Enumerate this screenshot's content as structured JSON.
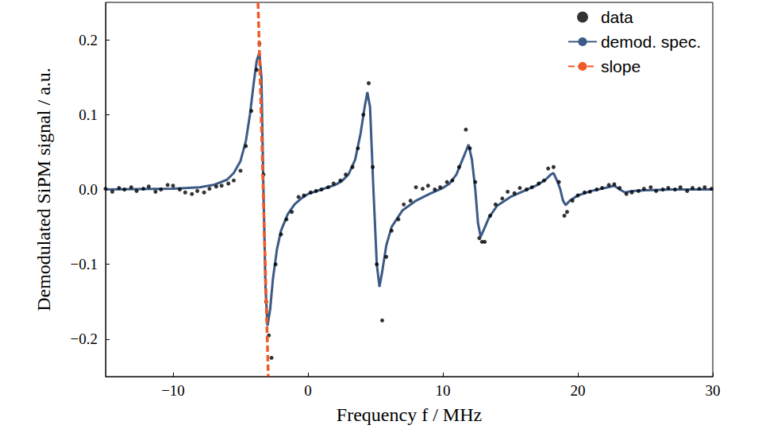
{
  "chart_data": {
    "type": "line",
    "x_label": "Frequency f / MHz",
    "y_label": "Demodulated SiPM signal / a.u.",
    "xlim": [
      -15,
      30
    ],
    "ylim": [
      -0.25,
      0.25
    ],
    "xticks": [
      {
        "value": -10,
        "label": "−10"
      },
      0,
      10,
      20,
      30
    ],
    "yticks": [
      {
        "value": -0.2,
        "label": "−0.2"
      },
      {
        "value": -0.1,
        "label": "−0.1"
      },
      {
        "value": 0,
        "label": "0.0"
      },
      0.1,
      0.2
    ],
    "grid": false,
    "legend": "upper right",
    "series": [
      {
        "name": "data",
        "type": "scatter",
        "color": "#000000",
        "marker": "circle",
        "x": [
          -15.0,
          -14.5,
          -14.0,
          -13.6,
          -13.1,
          -12.7,
          -12.2,
          -11.8,
          -11.3,
          -10.9,
          -10.4,
          -10.0,
          -9.5,
          -9.1,
          -8.6,
          -8.2,
          -7.7,
          -7.3,
          -6.8,
          -6.4,
          -5.9,
          -5.5,
          -5.0,
          -4.6,
          -4.2,
          -3.8,
          -3.6,
          -3.3,
          -3.1,
          -2.9,
          -2.7,
          -2.4,
          -2.0,
          -1.6,
          -1.2,
          -0.7,
          -0.3,
          0.2,
          0.6,
          1.0,
          1.5,
          1.9,
          2.4,
          2.8,
          3.3,
          3.7,
          4.1,
          4.5,
          4.8,
          5.1,
          5.5,
          5.8,
          6.2,
          6.7,
          7.1,
          7.6,
          8.0,
          8.5,
          8.9,
          9.4,
          9.8,
          10.3,
          10.7,
          11.2,
          11.7,
          12.0,
          12.4,
          12.7,
          12.9,
          13.1,
          13.5,
          13.9,
          14.4,
          14.8,
          15.3,
          15.7,
          16.2,
          16.6,
          17.1,
          17.5,
          17.8,
          18.2,
          18.6,
          19.0,
          19.2,
          19.6,
          20.0,
          20.5,
          20.9,
          21.4,
          21.8,
          22.3,
          22.7,
          23.1,
          23.6,
          24.0,
          24.5,
          24.9,
          25.4,
          25.8,
          26.3,
          26.7,
          27.2,
          27.6,
          28.1,
          28.5,
          29.0,
          29.4,
          29.9
        ],
        "values": [
          0.001,
          -0.003,
          0.002,
          0.0,
          0.003,
          -0.002,
          0.001,
          0.004,
          -0.003,
          0.0,
          0.006,
          0.005,
          0.0,
          -0.004,
          -0.006,
          -0.002,
          -0.004,
          0.001,
          0.004,
          0.005,
          0.008,
          0.012,
          0.025,
          0.058,
          0.105,
          0.16,
          0.195,
          0.02,
          -0.15,
          -0.195,
          -0.225,
          -0.1,
          -0.06,
          -0.04,
          -0.03,
          -0.01,
          -0.008,
          -0.004,
          -0.002,
          0.0,
          0.003,
          0.008,
          0.012,
          0.02,
          0.03,
          0.055,
          0.1,
          0.142,
          0.03,
          -0.1,
          -0.175,
          -0.09,
          -0.055,
          -0.04,
          -0.02,
          -0.015,
          0.003,
          0.001,
          0.005,
          0.0,
          0.003,
          0.01,
          0.012,
          0.03,
          0.08,
          0.055,
          0.01,
          -0.065,
          -0.07,
          -0.07,
          -0.035,
          -0.02,
          -0.012,
          -0.003,
          -0.005,
          0.002,
          0.0,
          0.003,
          0.008,
          0.012,
          0.028,
          0.03,
          0.01,
          -0.035,
          -0.03,
          -0.015,
          -0.008,
          -0.004,
          -0.003,
          0.0,
          0.002,
          0.006,
          0.007,
          0.002,
          -0.006,
          -0.004,
          -0.002,
          0.001,
          0.003,
          -0.002,
          0.0,
          0.002,
          0.0,
          0.003,
          -0.002,
          0.002,
          0.001,
          0.003,
          0.001
        ]
      },
      {
        "name": "demod. spec.",
        "type": "line",
        "color": "#3b5a85",
        "line_style": "solid",
        "x": [
          -15,
          -10,
          -8,
          -7,
          -6,
          -5.5,
          -5,
          -4.6,
          -4.3,
          -4.0,
          -3.8,
          -3.6,
          -3.45,
          -3.3,
          -3.15,
          -3.0,
          -2.8,
          -2.6,
          -2.3,
          -2.0,
          -1.5,
          -1.0,
          -0.5,
          0,
          0.5,
          1,
          2,
          2.5,
          3,
          3.5,
          3.9,
          4.2,
          4.4,
          4.6,
          4.85,
          5.1,
          5.3,
          5.5,
          5.8,
          6.2,
          7,
          8,
          9,
          10,
          10.5,
          11,
          11.5,
          11.9,
          12.15,
          12.4,
          12.6,
          12.8,
          13.0,
          13.4,
          14,
          15,
          16,
          17,
          17.6,
          18.0,
          18.2,
          18.5,
          18.7,
          18.9,
          19.1,
          19.4,
          20,
          21,
          22,
          22.5,
          22.7,
          23.1,
          23.5,
          24,
          25,
          27,
          30
        ],
        "values": [
          0,
          0.001,
          0.003,
          0.006,
          0.013,
          0.022,
          0.038,
          0.065,
          0.1,
          0.145,
          0.172,
          0.183,
          0.15,
          0.0,
          -0.13,
          -0.182,
          -0.16,
          -0.12,
          -0.08,
          -0.055,
          -0.033,
          -0.02,
          -0.012,
          -0.006,
          -0.003,
          0,
          0.006,
          0.011,
          0.02,
          0.04,
          0.075,
          0.11,
          0.13,
          0.11,
          0.0,
          -0.1,
          -0.13,
          -0.11,
          -0.075,
          -0.05,
          -0.028,
          -0.015,
          -0.006,
          0.002,
          0.008,
          0.02,
          0.042,
          0.06,
          0.04,
          0.0,
          -0.045,
          -0.063,
          -0.055,
          -0.038,
          -0.022,
          -0.01,
          -0.002,
          0.006,
          0.013,
          0.02,
          0.022,
          0.01,
          0,
          -0.015,
          -0.021,
          -0.015,
          -0.008,
          -0.002,
          0.002,
          0.004,
          0.005,
          0,
          -0.004,
          -0.002,
          -0.001,
          0,
          0
        ]
      },
      {
        "name": "slope",
        "type": "line",
        "color": "#f05a28",
        "line_style": "dashed",
        "x": [
          -3.7,
          -2.94
        ],
        "values": [
          0.25,
          -0.25
        ]
      }
    ]
  }
}
